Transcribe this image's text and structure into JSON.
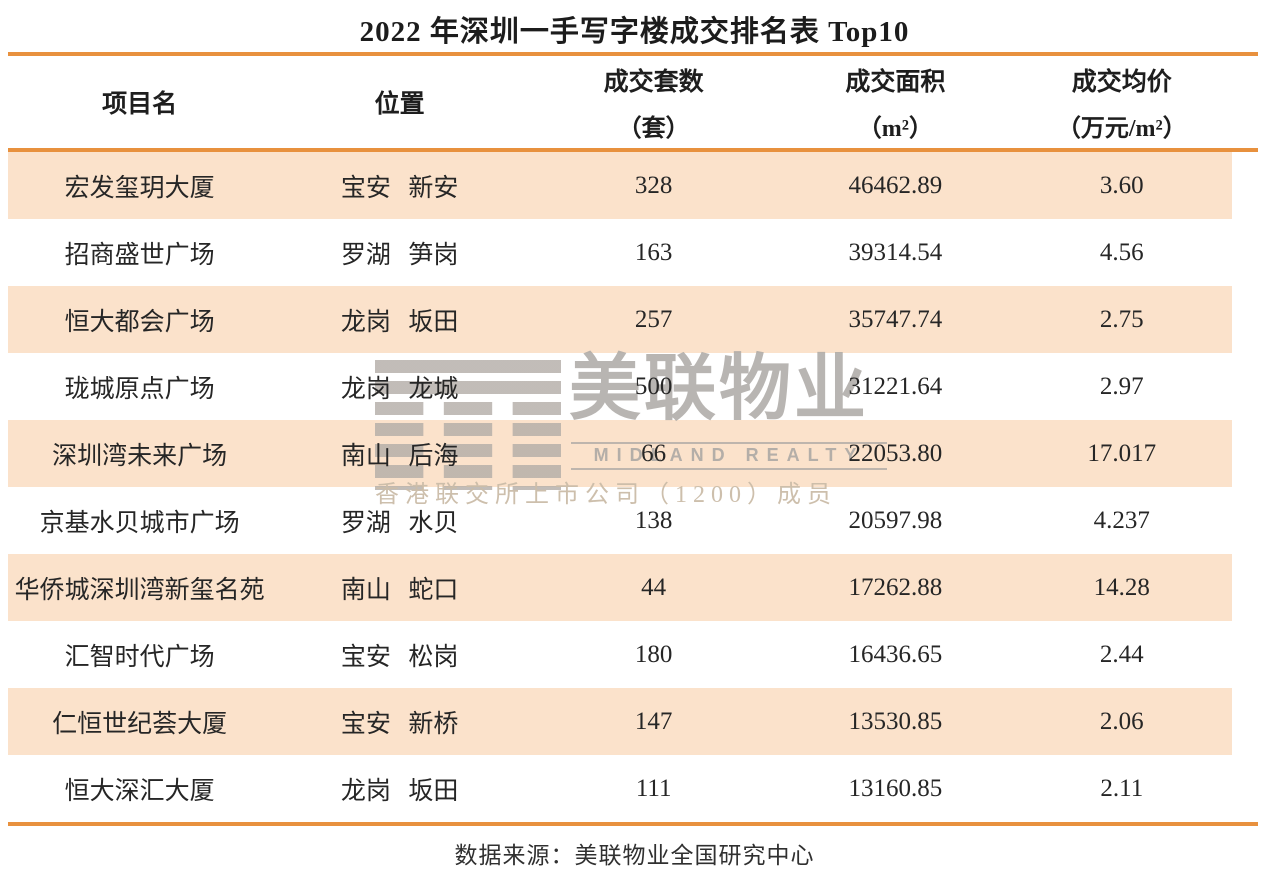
{
  "title": "2022 年深圳一手写字楼成交排名表 Top10",
  "table": {
    "columns": [
      {
        "label": "项目名",
        "sub": ""
      },
      {
        "label": "位置",
        "sub": ""
      },
      {
        "label": "成交套数",
        "sub": "（套）"
      },
      {
        "label": "成交面积",
        "sub": "（m²）"
      },
      {
        "label": "成交均价",
        "sub": "（万元/m²）"
      }
    ],
    "rows": [
      [
        "宏发玺玥大厦",
        "宝安 新安",
        "328",
        "46462.89",
        "3.60"
      ],
      [
        "招商盛世广场",
        "罗湖 笋岗",
        "163",
        "39314.54",
        "4.56"
      ],
      [
        "恒大都会广场",
        "龙岗 坂田",
        "257",
        "35747.74",
        "2.75"
      ],
      [
        "珑城原点广场",
        "龙岗 龙城",
        "500",
        "31221.64",
        "2.97"
      ],
      [
        "深圳湾未来广场",
        "南山 后海",
        "66",
        "22053.80",
        "17.017"
      ],
      [
        "京基水贝城市广场",
        "罗湖 水贝",
        "138",
        "20597.98",
        "4.237"
      ],
      [
        "华侨城深圳湾新玺名苑",
        "南山 蛇口",
        "44",
        "17262.88",
        "14.28"
      ],
      [
        "汇智时代广场",
        "宝安 松岗",
        "180",
        "16436.65",
        "2.44"
      ],
      [
        "仁恒世纪荟大厦",
        "宝安 新桥",
        "147",
        "13530.85",
        "2.06"
      ],
      [
        "恒大深汇大厦",
        "龙岗 坂田",
        "111",
        "13160.85",
        "2.11"
      ]
    ]
  },
  "watermark": {
    "logo_icon": "midland-stripe-m-logo",
    "brand_cn": "美联物业",
    "brand_en": "MIDLAND REALTY",
    "tagline": "香港联交所上市公司（1200）成员"
  },
  "footer": {
    "source": "数据来源：美联物业全国研究中心"
  },
  "colors": {
    "accent_orange": "#E8913E",
    "row_peach": "#FBE2CB",
    "watermark_gray": "#B2ACA6",
    "text": "#262626"
  }
}
